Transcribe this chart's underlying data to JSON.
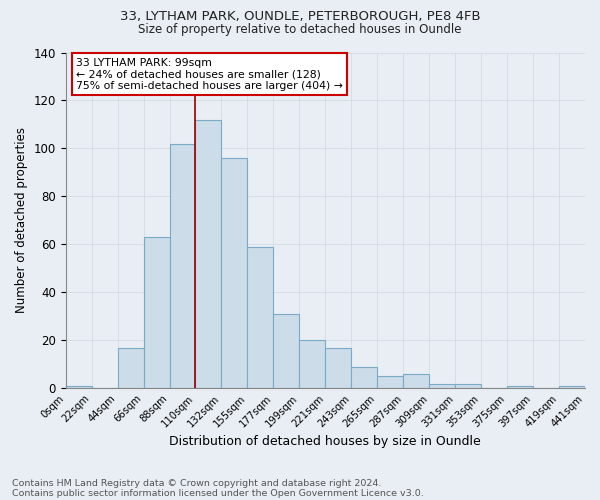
{
  "title1": "33, LYTHAM PARK, OUNDLE, PETERBOROUGH, PE8 4FB",
  "title2": "Size of property relative to detached houses in Oundle",
  "xlabel": "Distribution of detached houses by size in Oundle",
  "ylabel": "Number of detached properties",
  "footer1": "Contains HM Land Registry data © Crown copyright and database right 2024.",
  "footer2": "Contains public sector information licensed under the Open Government Licence v3.0.",
  "bin_labels": [
    "0sqm",
    "22sqm",
    "44sqm",
    "66sqm",
    "88sqm",
    "110sqm",
    "132sqm",
    "155sqm",
    "177sqm",
    "199sqm",
    "221sqm",
    "243sqm",
    "265sqm",
    "287sqm",
    "309sqm",
    "331sqm",
    "353sqm",
    "375sqm",
    "397sqm",
    "419sqm",
    "441sqm"
  ],
  "bar_values": [
    1,
    0,
    17,
    63,
    102,
    112,
    96,
    59,
    31,
    20,
    17,
    9,
    5,
    6,
    2,
    2,
    0,
    1,
    0,
    1
  ],
  "bar_color": "#ccdce8",
  "bar_edge_color": "#7aaac8",
  "red_line_label": "33 LYTHAM PARK: 99sqm",
  "annotation_line1": "← 24% of detached houses are smaller (128)",
  "annotation_line2": "75% of semi-detached houses are larger (404) →",
  "annotation_box_color": "#ffffff",
  "annotation_box_edge": "#cc0000",
  "ylim": [
    0,
    140
  ],
  "yticks": [
    0,
    20,
    40,
    60,
    80,
    100,
    120,
    140
  ],
  "grid_color": "#d0d8e0",
  "background_color": "#e8eef4",
  "plot_bg_color": "#e8eef4"
}
